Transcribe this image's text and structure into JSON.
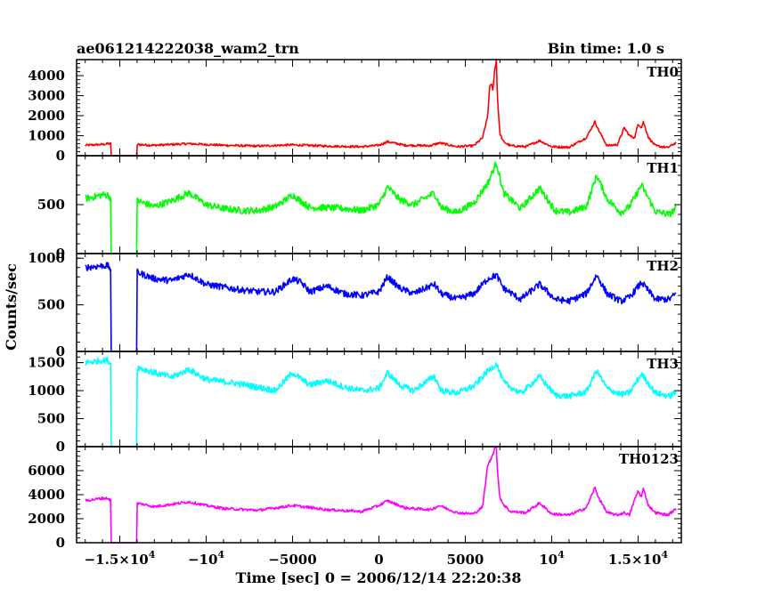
{
  "title": "ae061214222038_wam2_trn",
  "bin_time": "Bin time: 1.0 s",
  "chart_data": {
    "type": "line",
    "xlabel": "Time [sec] 0 = 2006/12/14 22:20:38",
    "ylabel": "Counts/sec",
    "xlim": [
      -17500,
      17500
    ],
    "grid": false,
    "x_ticks": [
      {
        "value": -15000,
        "label": "−1.5×10",
        "exp": "4"
      },
      {
        "value": -10000,
        "label": "−10",
        "exp": "4"
      },
      {
        "value": -5000,
        "label": "−5000",
        "exp": ""
      },
      {
        "value": 0,
        "label": "0",
        "exp": ""
      },
      {
        "value": 5000,
        "label": "5000",
        "exp": ""
      },
      {
        "value": 10000,
        "label": "10",
        "exp": "4"
      },
      {
        "value": 15000,
        "label": "1.5×10",
        "exp": "4"
      }
    ],
    "data_gap": [
      -15500,
      -14000
    ],
    "panels": [
      {
        "name": "TH0",
        "color": "#ff0000",
        "ylim": [
          0,
          4800
        ],
        "yticks": [
          0,
          1000,
          2000,
          3000,
          4000
        ],
        "noise": 55,
        "x": [
          -17000,
          -16000,
          -15700,
          -15500,
          -14000,
          -13000,
          -11000,
          -9000,
          -7000,
          -5000,
          -3000,
          -1000,
          0,
          500,
          1500,
          3000,
          3500,
          4500,
          5500,
          6000,
          6300,
          6400,
          6500,
          6600,
          6700,
          6800,
          6850,
          7000,
          7200,
          7600,
          8500,
          9300,
          10000,
          11000,
          12000,
          12500,
          12700,
          13200,
          13800,
          14200,
          14500,
          14800,
          15000,
          15200,
          15300,
          15600,
          16000,
          16700,
          17200
        ],
        "y": [
          520,
          560,
          600,
          600,
          560,
          520,
          600,
          520,
          480,
          540,
          480,
          450,
          520,
          700,
          520,
          500,
          640,
          450,
          500,
          900,
          2000,
          3400,
          3600,
          3300,
          4300,
          4800,
          3000,
          1100,
          700,
          500,
          450,
          750,
          450,
          420,
          900,
          1700,
          1300,
          500,
          550,
          1400,
          1000,
          900,
          1600,
          1400,
          1700,
          900,
          500,
          400,
          650
        ]
      },
      {
        "name": "TH1",
        "color": "#00ff00",
        "ylim": [
          0,
          1000
        ],
        "yticks": [
          0,
          500
        ],
        "noise": 35,
        "x": [
          -17000,
          -16000,
          -15700,
          -15500,
          -14000,
          -13000,
          -12000,
          -11000,
          -10000,
          -9000,
          -8000,
          -7000,
          -6000,
          -5000,
          -4000,
          -3000,
          -2000,
          -1000,
          0,
          500,
          1200,
          2000,
          3200,
          3600,
          4500,
          5500,
          6300,
          6800,
          7200,
          8200,
          9300,
          10200,
          11000,
          12000,
          12600,
          13200,
          14000,
          14500,
          15200,
          16000,
          16800,
          17200
        ],
        "y": [
          560,
          600,
          600,
          560,
          540,
          480,
          540,
          620,
          500,
          460,
          440,
          440,
          480,
          600,
          470,
          470,
          460,
          440,
          500,
          680,
          550,
          500,
          620,
          470,
          420,
          520,
          720,
          930,
          620,
          460,
          670,
          440,
          420,
          480,
          800,
          560,
          420,
          480,
          700,
          430,
          400,
          460
        ]
      },
      {
        "name": "TH2",
        "color": "#0000ff",
        "ylim": [
          0,
          1050
        ],
        "yticks": [
          0,
          500,
          1000
        ],
        "noise": 35,
        "x": [
          -17000,
          -16000,
          -15700,
          -15500,
          -14000,
          -13000,
          -12000,
          -11000,
          -10000,
          -9000,
          -8000,
          -7000,
          -6000,
          -5000,
          -4500,
          -4000,
          -3000,
          -2000,
          -1000,
          0,
          500,
          1200,
          2000,
          3200,
          3600,
          4500,
          5500,
          6300,
          6800,
          7200,
          8200,
          9300,
          10200,
          11000,
          12000,
          12600,
          13200,
          14000,
          14500,
          15200,
          16000,
          16800,
          17200
        ],
        "y": [
          900,
          920,
          920,
          880,
          850,
          780,
          760,
          830,
          720,
          690,
          660,
          640,
          640,
          780,
          740,
          640,
          700,
          620,
          600,
          640,
          800,
          680,
          620,
          720,
          620,
          560,
          620,
          780,
          820,
          680,
          560,
          720,
          560,
          540,
          620,
          820,
          620,
          540,
          580,
          740,
          560,
          560,
          620
        ]
      },
      {
        "name": "TH3",
        "color": "#00ffff",
        "ylim": [
          0,
          1700
        ],
        "yticks": [
          0,
          500,
          1000,
          1500
        ],
        "noise": 55,
        "x": [
          -17000,
          -16000,
          -15700,
          -15500,
          -14000,
          -13000,
          -12000,
          -11000,
          -10000,
          -9000,
          -8000,
          -7000,
          -6000,
          -5000,
          -4000,
          -3000,
          -2000,
          -1000,
          0,
          500,
          1200,
          2000,
          3200,
          3600,
          4500,
          5500,
          6300,
          6800,
          7200,
          8200,
          9300,
          10200,
          11000,
          12000,
          12600,
          13200,
          14000,
          14500,
          15200,
          16000,
          16800,
          17200
        ],
        "y": [
          1500,
          1540,
          1540,
          1470,
          1420,
          1320,
          1240,
          1380,
          1200,
          1160,
          1120,
          1060,
          1000,
          1320,
          1100,
          1180,
          1060,
          1000,
          1040,
          1320,
          1100,
          1000,
          1260,
          1000,
          960,
          1080,
          1350,
          1480,
          1150,
          950,
          1250,
          920,
          900,
          980,
          1360,
          1040,
          930,
          960,
          1300,
          960,
          900,
          980
        ]
      },
      {
        "name": "TH0123",
        "color": "#ff00ff",
        "ylim": [
          0,
          8000
        ],
        "yticks": [
          0,
          2000,
          4000,
          6000
        ],
        "noise": 110,
        "x": [
          -17000,
          -16000,
          -15700,
          -15500,
          -14000,
          -13000,
          -11000,
          -10000,
          -9000,
          -7000,
          -5000,
          -3000,
          -1000,
          0,
          500,
          1500,
          3000,
          3500,
          4500,
          5500,
          6000,
          6300,
          6500,
          6700,
          6800,
          6850,
          7000,
          7200,
          7600,
          8500,
          9300,
          10000,
          11000,
          12000,
          12500,
          12700,
          13200,
          13800,
          14200,
          14500,
          14800,
          15000,
          15200,
          15300,
          15600,
          16000,
          16700,
          17200
        ],
        "y": [
          3500,
          3700,
          3700,
          3500,
          3300,
          3000,
          3400,
          3100,
          2850,
          2700,
          3100,
          2750,
          2600,
          3100,
          3500,
          2900,
          2750,
          3100,
          2500,
          2400,
          3000,
          6500,
          7000,
          7900,
          8000,
          6000,
          3800,
          3200,
          2600,
          2500,
          3300,
          2400,
          2300,
          2900,
          4600,
          3800,
          2500,
          2300,
          2500,
          2300,
          3600,
          4300,
          3800,
          4500,
          3100,
          2500,
          2300,
          2800
        ]
      }
    ]
  }
}
